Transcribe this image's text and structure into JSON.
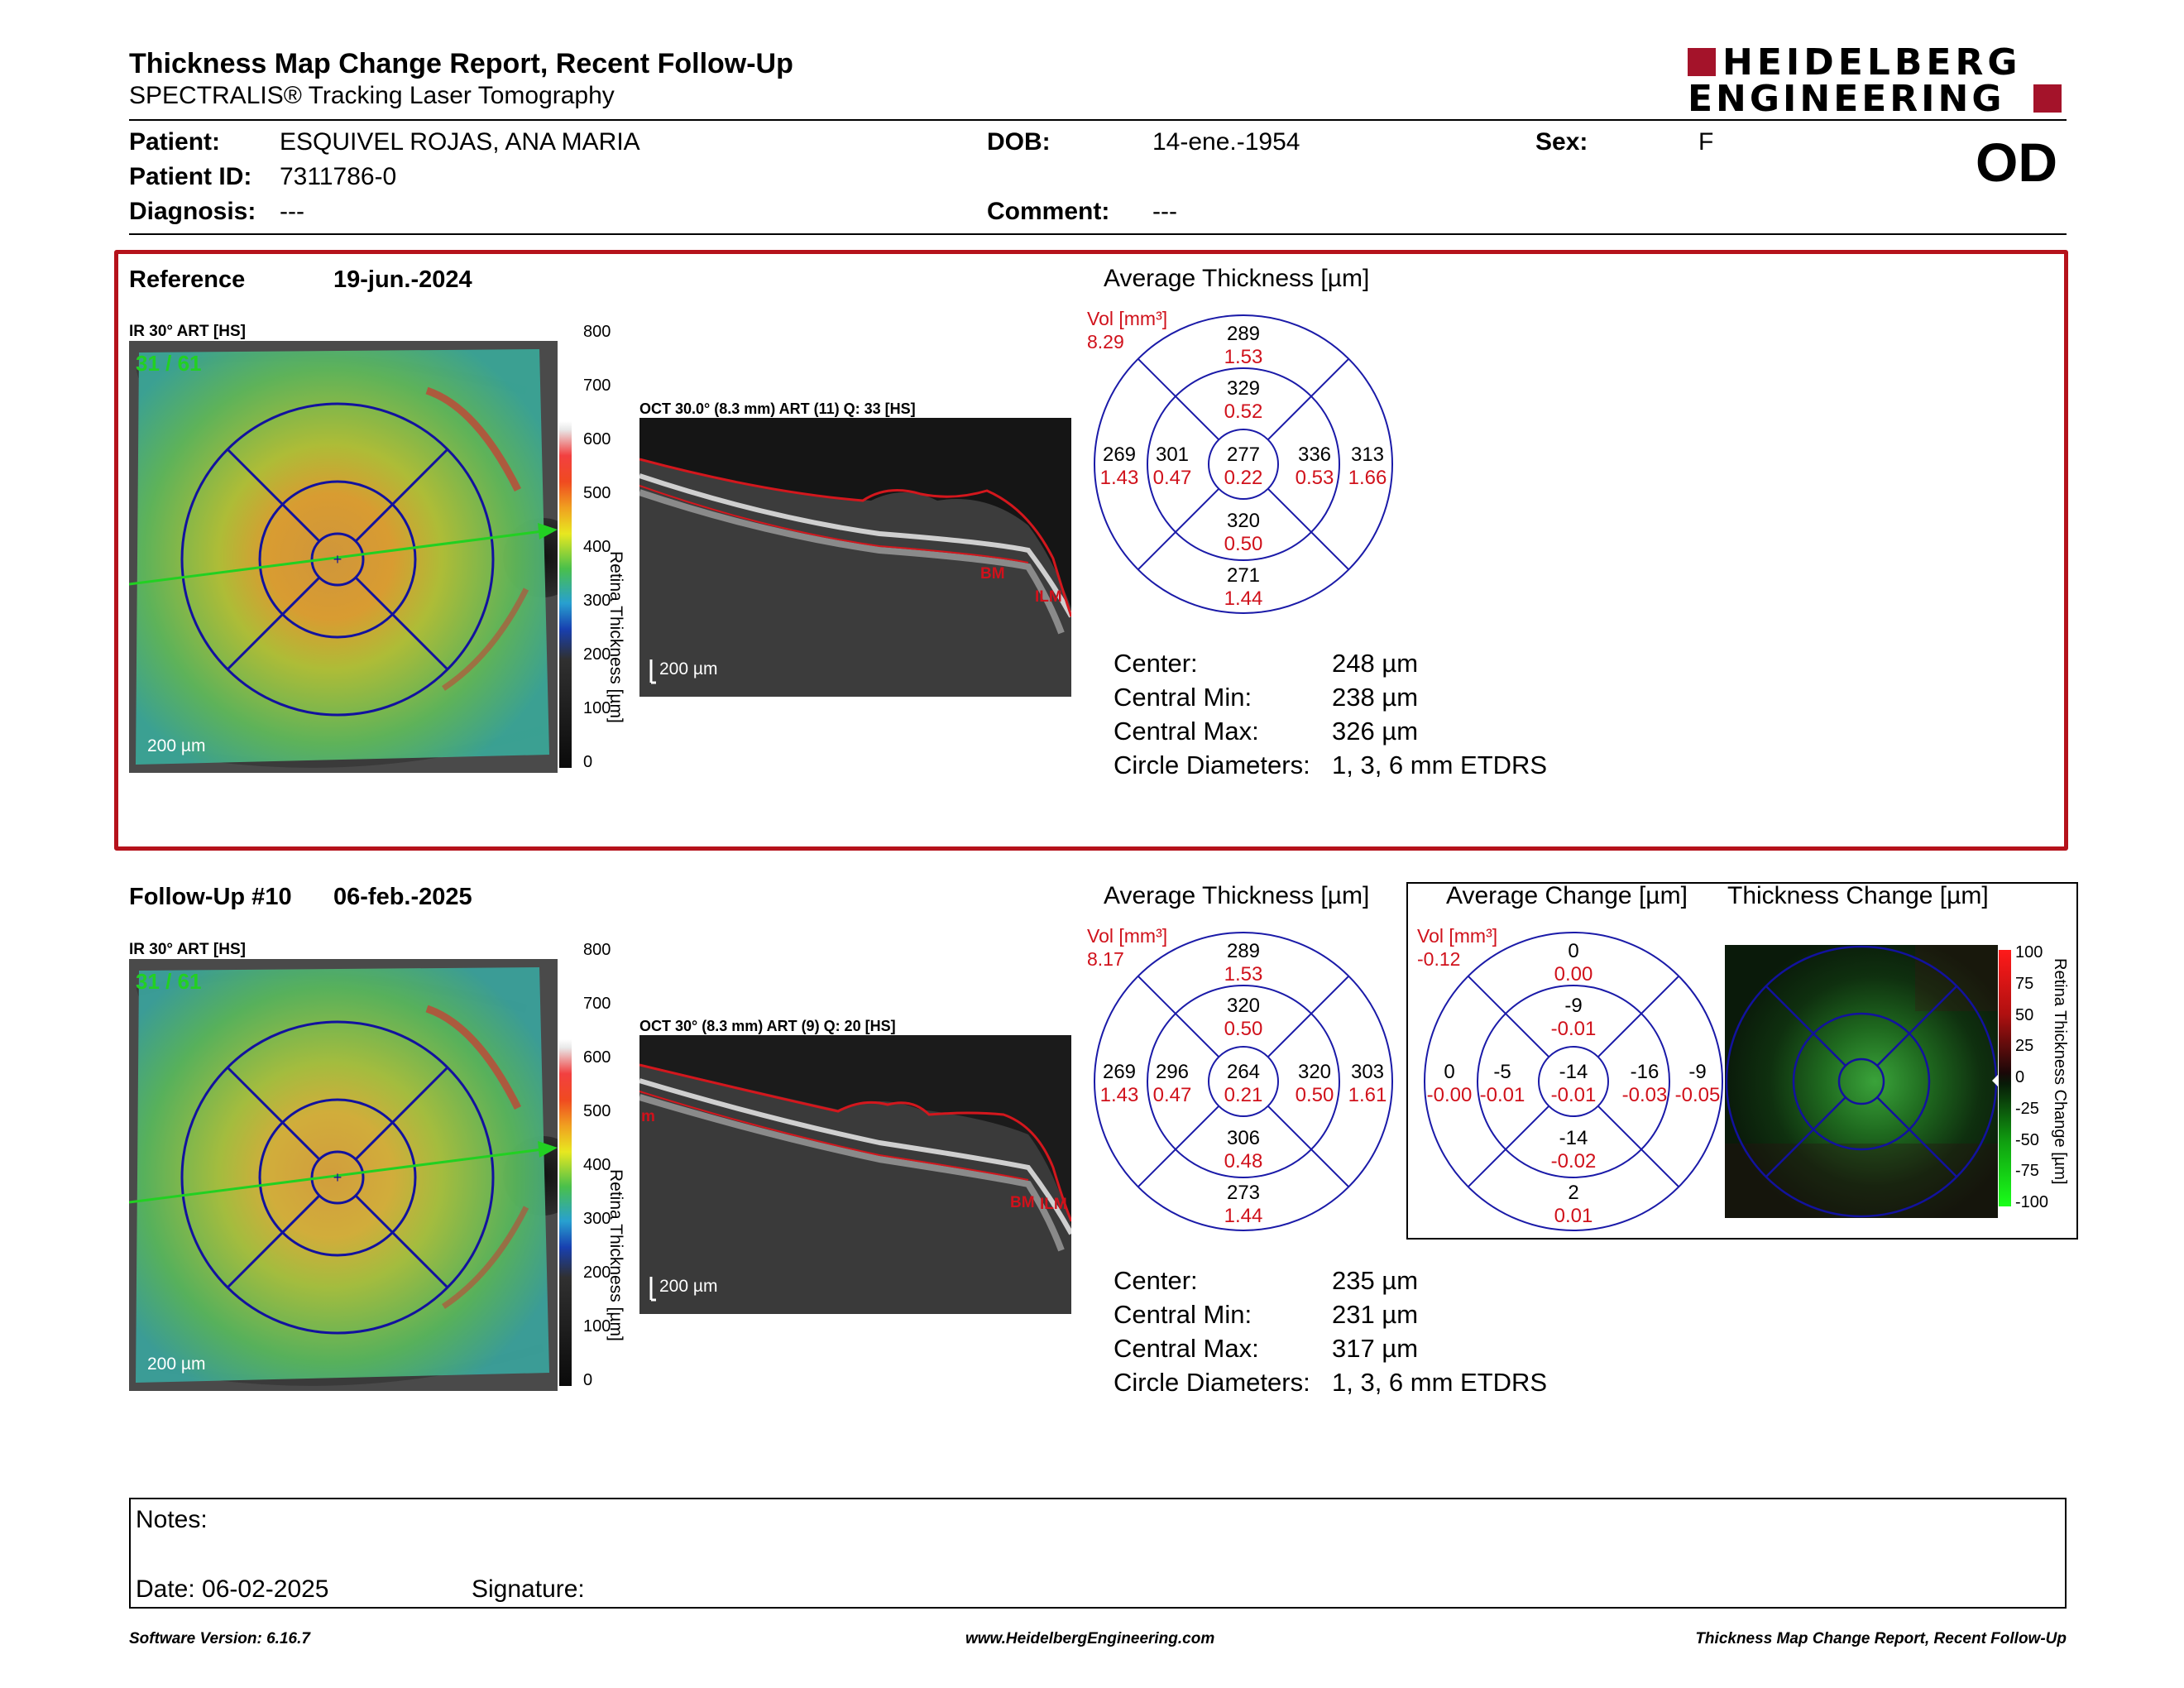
{
  "header": {
    "title": "Thickness Map Change Report, Recent Follow-Up",
    "subtitle": "SPECTRALIS® Tracking Laser Tomography",
    "logo_line1": "HEIDELBERG",
    "logo_line2": "ENGINEERING",
    "eye": "OD"
  },
  "patient": {
    "patient_label": "Patient:",
    "patient_value": "ESQUIVEL ROJAS, ANA MARIA",
    "id_label": "Patient ID:",
    "id_value": "7311786-0",
    "diagnosis_label": "Diagnosis:",
    "diagnosis_value": "---",
    "dob_label": "DOB:",
    "dob_value": "14-ene.-1954",
    "comment_label": "Comment:",
    "comment_value": "---",
    "sex_label": "Sex:",
    "sex_value": "F"
  },
  "reference": {
    "label": "Reference",
    "date": "19-jun.-2024",
    "scan_label": "IR 30° ART [HS]",
    "scan_counter": "31 / 61",
    "oct_label": "OCT 30.0° (8.3 mm) ART (11) Q: 33 [HS]",
    "avg_title": "Average Thickness [µm]",
    "vol_label": "Vol [mm³]",
    "vol_value": "8.29",
    "etdrs": {
      "c": [
        "277",
        "0.22"
      ],
      "in_s": [
        "329",
        "0.52"
      ],
      "in_t": [
        "301",
        "0.47"
      ],
      "in_n": [
        "336",
        "0.53"
      ],
      "in_i": [
        "320",
        "0.50"
      ],
      "out_s": [
        "289",
        "1.53"
      ],
      "out_t": [
        "269",
        "1.43"
      ],
      "out_n": [
        "313",
        "1.66"
      ],
      "out_i": [
        "271",
        "1.44"
      ]
    },
    "stats": {
      "center_label": "Center:",
      "center_value": "248 µm",
      "min_label": "Central Min:",
      "min_value": "238 µm",
      "max_label": "Central Max:",
      "max_value": "326 µm",
      "circ_label": "Circle Diameters:",
      "circ_value": "1, 3, 6 mm ETDRS"
    }
  },
  "followup": {
    "label": "Follow-Up #10",
    "date": "06-feb.-2025",
    "scan_label": "IR 30° ART [HS]",
    "scan_counter": "31 / 61",
    "oct_label": "OCT 30° (8.3 mm) ART (9) Q: 20 [HS]",
    "avg_title": "Average Thickness [µm]",
    "vol_label": "Vol [mm³]",
    "vol_value": "8.17",
    "etdrs": {
      "c": [
        "264",
        "0.21"
      ],
      "in_s": [
        "320",
        "0.50"
      ],
      "in_t": [
        "296",
        "0.47"
      ],
      "in_n": [
        "320",
        "0.50"
      ],
      "in_i": [
        "306",
        "0.48"
      ],
      "out_s": [
        "289",
        "1.53"
      ],
      "out_t": [
        "269",
        "1.43"
      ],
      "out_n": [
        "303",
        "1.61"
      ],
      "out_i": [
        "273",
        "1.44"
      ]
    },
    "stats": {
      "center_label": "Center:",
      "center_value": "235 µm",
      "min_label": "Central Min:",
      "min_value": "231 µm",
      "max_label": "Central Max:",
      "max_value": "317 µm",
      "circ_label": "Circle Diameters:",
      "circ_value": "1, 3, 6 mm ETDRS"
    }
  },
  "change": {
    "avg_title": "Average Change [µm]",
    "map_title": "Thickness Change [µm]",
    "vol_label": "Vol [mm³]",
    "vol_value": "-0.12",
    "etdrs": {
      "c": [
        "-14",
        "-0.01"
      ],
      "in_s": [
        "-9",
        "-0.01"
      ],
      "in_t": [
        "-5",
        "-0.01"
      ],
      "in_n": [
        "-16",
        "-0.03"
      ],
      "in_i": [
        "-14",
        "-0.02"
      ],
      "out_s": [
        "0",
        "0.00"
      ],
      "out_t": [
        "0",
        "-0.00"
      ],
      "out_n": [
        "-9",
        "-0.05"
      ],
      "out_i": [
        "2",
        "0.01"
      ]
    },
    "colorbar_ticks": [
      "100",
      "75",
      "50",
      "25",
      "0",
      "-25",
      "-50",
      "-75",
      "-100"
    ],
    "colorbar_label": "Retina Thickness Change [µm]"
  },
  "thickness_colorbar": {
    "ticks": [
      "800",
      "700",
      "600",
      "500",
      "400",
      "300",
      "200",
      "100",
      "0"
    ],
    "label": "Retina Thickness [µm]"
  },
  "image_labels": {
    "scale_200": "200 µm",
    "bm": "BM",
    "ilm": "ILM",
    "m": "m"
  },
  "notes": {
    "notes_label": "Notes:",
    "date_label": "Date: 06-02-2025",
    "signature_label": "Signature:"
  },
  "footer": {
    "version": "Software Version: 6.16.7",
    "url": "www.HeidelbergEngineering.com",
    "report": "Thickness Map Change Report, Recent Follow-Up"
  },
  "colors": {
    "accent_red": "#b5121b",
    "etdrs_blue": "#1a1aa8",
    "value_red": "#d0111b",
    "scan_green": "#22d022"
  }
}
